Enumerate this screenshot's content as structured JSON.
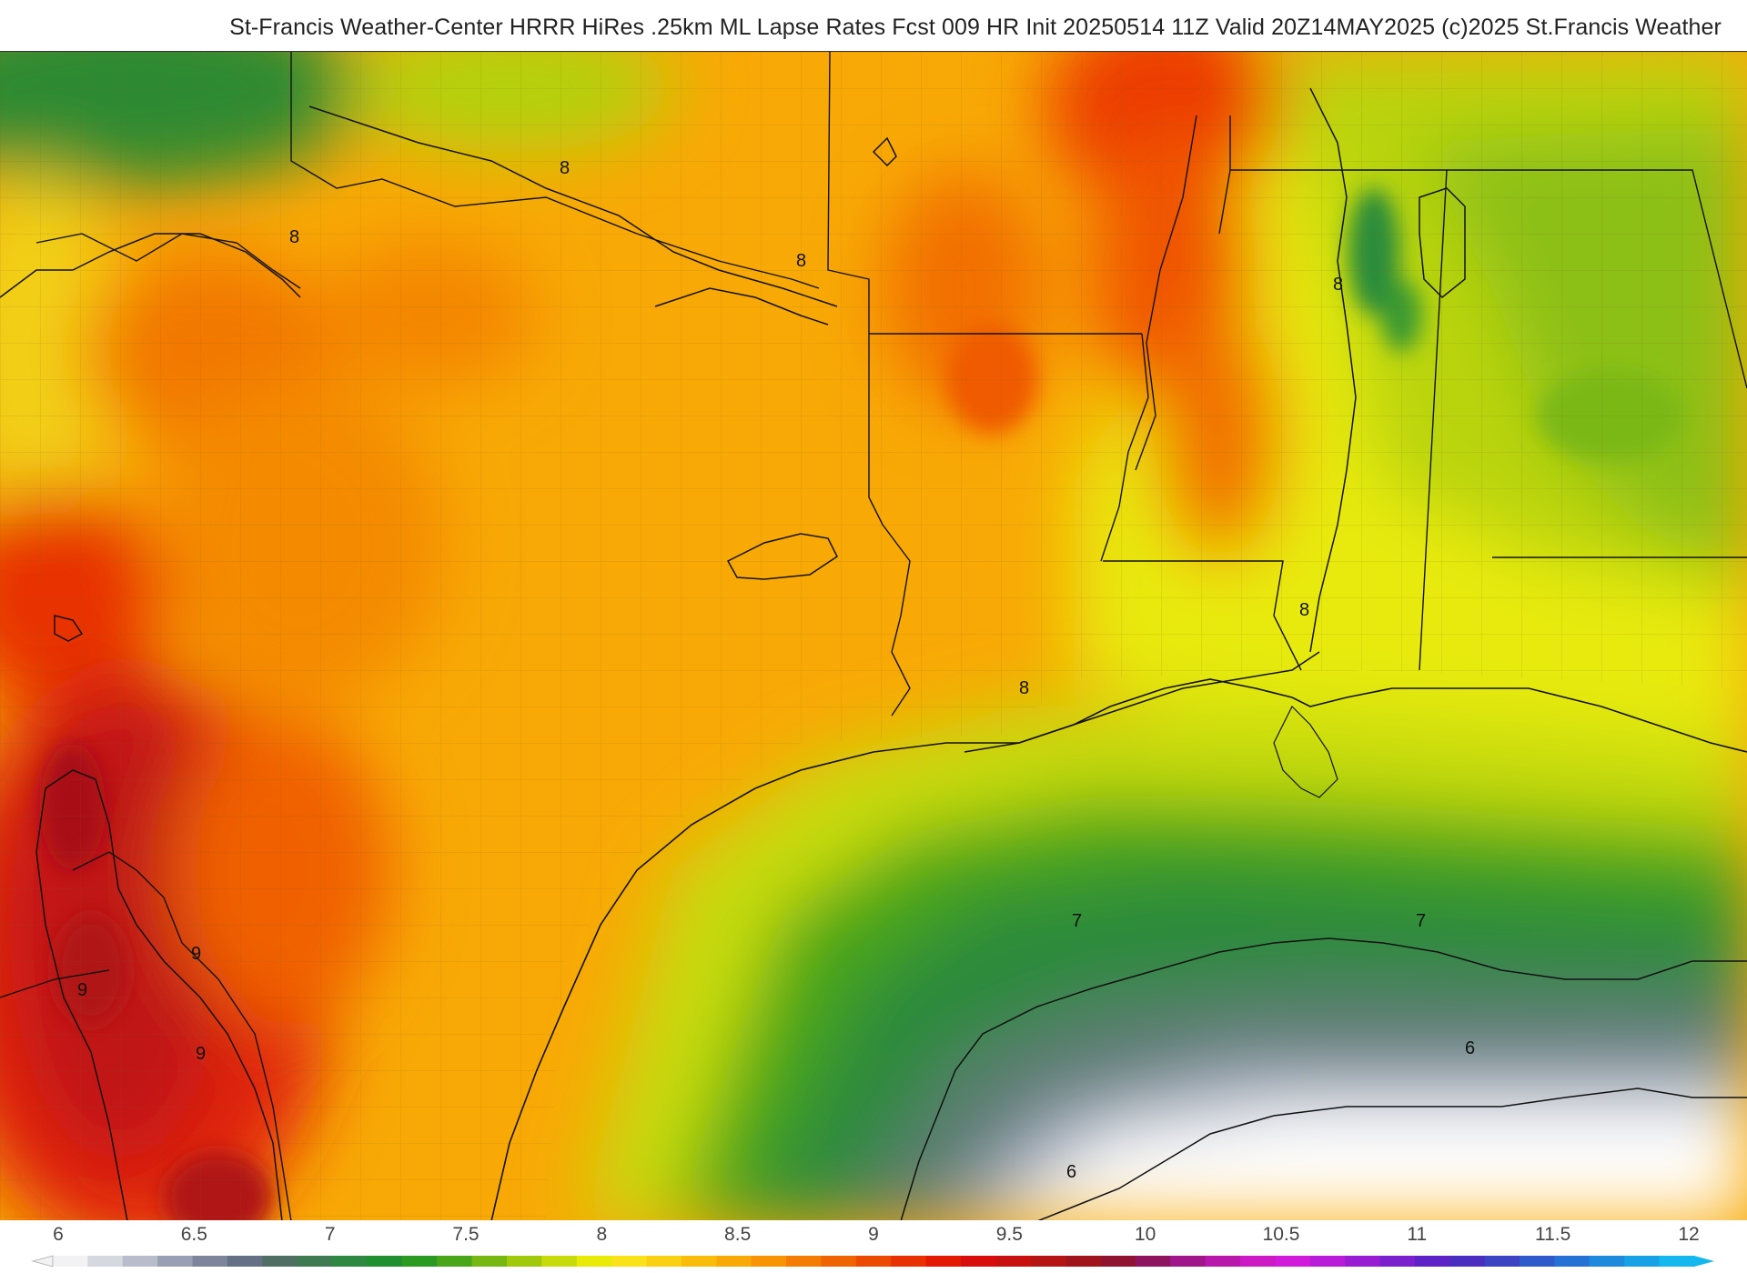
{
  "header": {
    "title": "St-Francis Weather-Center HRRR HiRes .25km ML Lapse Rates  Fcst 009 HR Init 20250514 11Z  Valid 20Z14MAY2025    (c)2025 St.Francis Weather"
  },
  "contour_labels": {
    "eight": "8",
    "nine": "9",
    "seven": "7",
    "six": "6"
  },
  "colorbar": {
    "ticks": [
      "6",
      "6.5",
      "7",
      "7.5",
      "8",
      "8.5",
      "9",
      "9.5",
      "10",
      "10.5",
      "11",
      "11.5",
      "12"
    ],
    "colors": [
      "#f2f2f4",
      "#d6d8e0",
      "#b8bccb",
      "#9aa0b4",
      "#7d849c",
      "#637086",
      "#4f6f64",
      "#3e7a52",
      "#2e8842",
      "#1f8f2f",
      "#2a9a22",
      "#4aa619",
      "#76b712",
      "#a1c90c",
      "#c8db0a",
      "#e9ea08",
      "#fae21a",
      "#fad012",
      "#f9bc0a",
      "#f8a905",
      "#f79400",
      "#f47c00",
      "#f06400",
      "#ec4a00",
      "#e83000",
      "#e21800",
      "#d80c0c",
      "#c81010",
      "#b41414",
      "#a0141c",
      "#901432",
      "#8e1460",
      "#a0168a",
      "#b818aa",
      "#cc1ac4",
      "#d01cda",
      "#b81cd8",
      "#981cd2",
      "#7a20cc",
      "#5e22c6",
      "#4a2ec0",
      "#3c44c4",
      "#2f5acb",
      "#2672d4",
      "#1e8ade",
      "#18a2e6",
      "#14b8ee"
    ]
  }
}
